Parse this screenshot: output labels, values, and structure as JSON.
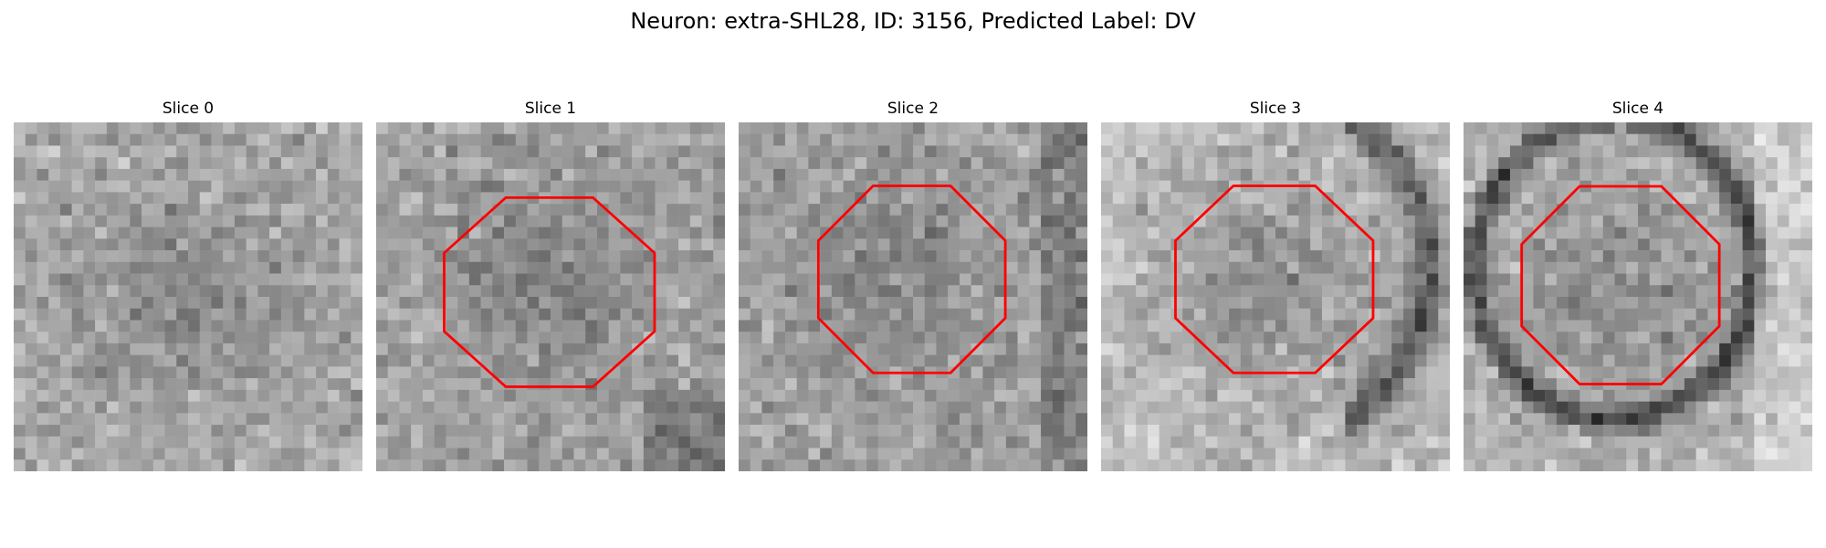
{
  "figure": {
    "title": "Neuron: extra-SHL28, ID: 3156, Predicted Label: DV",
    "roi_color": "#ff0000",
    "colormap": "gray",
    "panels": [
      {
        "title": "Slice 0",
        "has_roi": false
      },
      {
        "title": "Slice 1",
        "has_roi": true
      },
      {
        "title": "Slice 2",
        "has_roi": true
      },
      {
        "title": "Slice 3",
        "has_roi": true
      },
      {
        "title": "Slice 4",
        "has_roi": true
      }
    ]
  }
}
